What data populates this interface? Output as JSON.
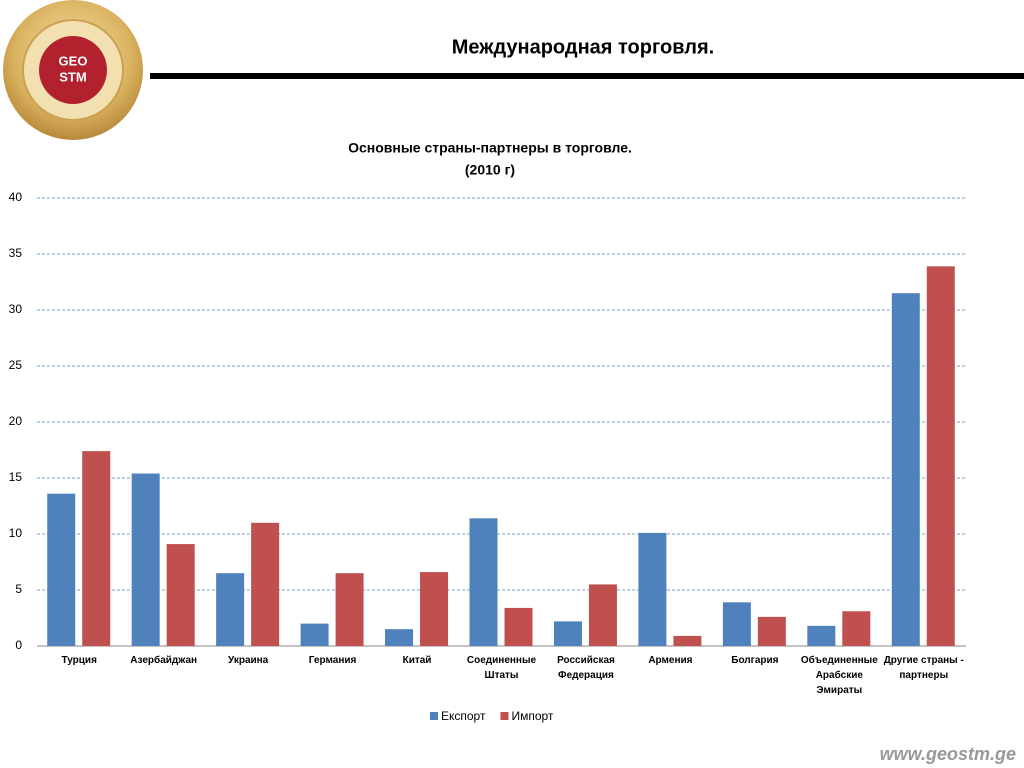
{
  "header": {
    "title": "Международная торговля.",
    "logo": [
      "GEO",
      "STM"
    ]
  },
  "footer": "www.geostm.ge",
  "chart_data": {
    "type": "bar",
    "title": "Основные страны-партнеры в торговле.",
    "subtitle": "(2010 г)",
    "categories": [
      "Турция",
      "Азербайджан",
      "Украина",
      "Германия",
      "Китай",
      "Соединенные Штаты",
      "Российская Федерация",
      "Армения",
      "Болгария",
      "Объединенные Арабские Эмираты",
      "Другие страны - партнеры"
    ],
    "series": [
      {
        "name": "Експорт",
        "color": "#4f81bd",
        "values": [
          13.6,
          15.4,
          6.5,
          2.0,
          1.5,
          11.4,
          2.2,
          10.1,
          3.9,
          1.8,
          31.5
        ]
      },
      {
        "name": "Импорт",
        "color": "#c0504d",
        "values": [
          17.4,
          9.1,
          11.0,
          6.5,
          6.6,
          3.4,
          5.5,
          0.9,
          2.6,
          3.1,
          33.9
        ]
      }
    ],
    "ylim": [
      0,
      40
    ],
    "yticks": [
      0,
      5,
      10,
      15,
      20,
      25,
      30,
      35,
      40
    ],
    "grid": true,
    "legend": "bottom"
  }
}
